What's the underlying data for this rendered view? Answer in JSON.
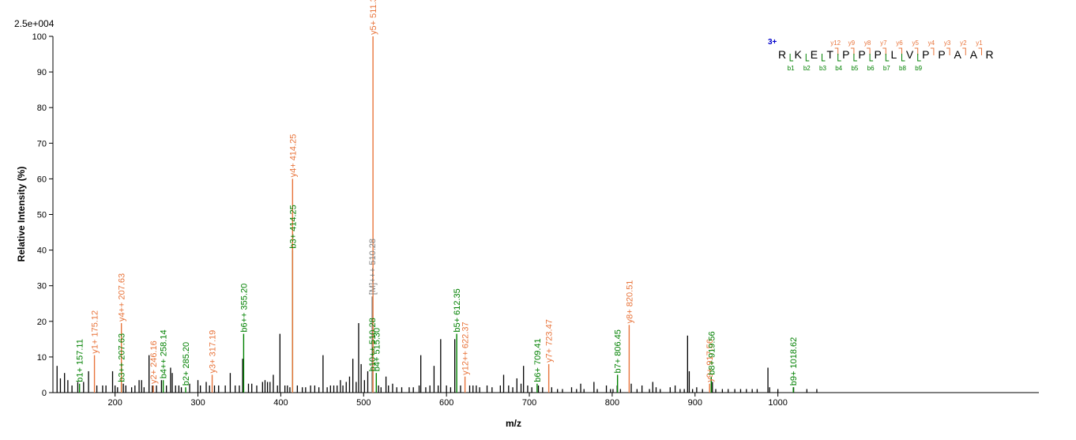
{
  "chart_data": {
    "type": "bar",
    "xlabel": "m/z",
    "ylabel": "Relative   Intensity (%)",
    "scale_label": "2.5e+004",
    "xlim": [
      125,
      1315
    ],
    "ylim": [
      0,
      100
    ],
    "x_ticks": [
      200,
      300,
      400,
      500,
      600,
      700,
      800,
      900,
      1000
    ],
    "y_ticks": [
      0,
      10,
      20,
      30,
      40,
      50,
      60,
      70,
      80,
      90,
      100
    ],
    "colors": {
      "b_ion": "#008000",
      "y_ion": "#e8743b",
      "precursor": "#808080",
      "background": "#000000"
    },
    "annotated_peaks": [
      {
        "mz": 157.11,
        "intensity": 2.5,
        "label": "b1+ 157.11",
        "ion": "b"
      },
      {
        "mz": 175.12,
        "intensity": 10.5,
        "label": "y1+ 175.12",
        "ion": "y"
      },
      {
        "mz": 207.63,
        "intensity": 2.5,
        "label": "b3++ 207.63",
        "ion": "b"
      },
      {
        "mz": 207.63,
        "intensity": 19.5,
        "label": "y4++ 207.63",
        "ion": "y"
      },
      {
        "mz": 246.16,
        "intensity": 2.0,
        "label": "y2+ 246.16",
        "ion": "y"
      },
      {
        "mz": 258.14,
        "intensity": 3.5,
        "label": "b4++ 258.14",
        "ion": "b"
      },
      {
        "mz": 285.2,
        "intensity": 1.5,
        "label": "b2+ 285.20",
        "ion": "b"
      },
      {
        "mz": 317.19,
        "intensity": 5.0,
        "label": "y3+ 317.19",
        "ion": "y"
      },
      {
        "mz": 355.2,
        "intensity": 16.5,
        "label": "b6++ 355.20",
        "ion": "b"
      },
      {
        "mz": 414.25,
        "intensity": 40.0,
        "label": "b3+ 414.25",
        "ion": "b"
      },
      {
        "mz": 414.25,
        "intensity": 60.0,
        "label": "y4+ 414.25",
        "ion": "y"
      },
      {
        "mz": 510.28,
        "intensity": 5.5,
        "label": "b10++ 510.28",
        "ion": "b"
      },
      {
        "mz": 510.28,
        "intensity": 27.0,
        "label": "[M]+++ 510.28",
        "ion": "precursor"
      },
      {
        "mz": 511.3,
        "intensity": 100.0,
        "label": "y5+ 511.30",
        "ion": "y"
      },
      {
        "mz": 515.3,
        "intensity": 5.5,
        "label": "b4+ 515.30",
        "ion": "b"
      },
      {
        "mz": 612.35,
        "intensity": 16.5,
        "label": "b5+ 612.35",
        "ion": "b"
      },
      {
        "mz": 622.37,
        "intensity": 4.5,
        "label": "y12++ 622.37",
        "ion": "y"
      },
      {
        "mz": 709.41,
        "intensity": 2.5,
        "label": "b6+ 709.41",
        "ion": "b"
      },
      {
        "mz": 723.47,
        "intensity": 8.0,
        "label": "y7+ 723.47",
        "ion": "y"
      },
      {
        "mz": 806.45,
        "intensity": 5.0,
        "label": "b7+ 806.45",
        "ion": "b"
      },
      {
        "mz": 820.51,
        "intensity": 19.0,
        "label": "y8+ 820.51",
        "ion": "y"
      },
      {
        "mz": 917.56,
        "intensity": 2.5,
        "label": "y9+ 917.56",
        "ion": "y"
      },
      {
        "mz": 919.56,
        "intensity": 4.5,
        "label": "b8+ 919.56",
        "ion": "b"
      },
      {
        "mz": 1018.62,
        "intensity": 1.5,
        "label": "b9+ 1018.62",
        "ion": "b"
      }
    ],
    "background_peaks": [
      [
        130,
        7.5
      ],
      [
        134,
        4
      ],
      [
        139,
        5.5
      ],
      [
        143,
        3.5
      ],
      [
        148,
        2
      ],
      [
        155,
        3
      ],
      [
        162,
        3
      ],
      [
        168,
        6
      ],
      [
        178,
        2
      ],
      [
        185,
        2
      ],
      [
        189,
        2
      ],
      [
        197,
        6
      ],
      [
        200,
        2
      ],
      [
        203,
        1.5
      ],
      [
        210,
        2.5
      ],
      [
        213,
        2
      ],
      [
        220,
        1.5
      ],
      [
        224,
        2
      ],
      [
        229,
        3.5
      ],
      [
        232,
        3.5
      ],
      [
        235,
        1.5
      ],
      [
        241,
        10.5
      ],
      [
        245,
        2
      ],
      [
        250,
        2
      ],
      [
        256,
        3.5
      ],
      [
        262,
        2
      ],
      [
        267,
        7
      ],
      [
        269,
        5.5
      ],
      [
        273,
        2
      ],
      [
        277,
        2
      ],
      [
        280,
        1.5
      ],
      [
        290,
        2.5
      ],
      [
        300,
        3.5
      ],
      [
        303,
        2
      ],
      [
        310,
        3
      ],
      [
        314,
        2
      ],
      [
        320,
        2
      ],
      [
        325,
        2
      ],
      [
        333,
        2
      ],
      [
        339,
        5.5
      ],
      [
        345,
        2
      ],
      [
        350,
        2
      ],
      [
        354,
        9.5
      ],
      [
        361,
        2.5
      ],
      [
        365,
        2.5
      ],
      [
        371,
        2
      ],
      [
        378,
        3
      ],
      [
        381,
        3.5
      ],
      [
        384,
        3
      ],
      [
        387,
        3
      ],
      [
        391,
        5
      ],
      [
        396,
        2
      ],
      [
        399,
        16.5
      ],
      [
        405,
        2
      ],
      [
        408,
        2
      ],
      [
        411,
        1.5
      ],
      [
        420,
        2
      ],
      [
        426,
        1.5
      ],
      [
        430,
        1.5
      ],
      [
        436,
        2
      ],
      [
        441,
        2
      ],
      [
        446,
        1.5
      ],
      [
        451,
        10.5
      ],
      [
        456,
        1.5
      ],
      [
        460,
        2
      ],
      [
        464,
        2
      ],
      [
        468,
        2
      ],
      [
        472,
        3.5
      ],
      [
        475,
        2
      ],
      [
        479,
        3
      ],
      [
        483,
        4.5
      ],
      [
        487,
        9.5
      ],
      [
        491,
        3
      ],
      [
        494,
        19.5
      ],
      [
        497,
        8
      ],
      [
        501,
        3.5
      ],
      [
        505,
        6
      ],
      [
        518,
        2
      ],
      [
        521,
        1.5
      ],
      [
        527,
        4.5
      ],
      [
        530,
        2
      ],
      [
        535,
        2.5
      ],
      [
        540,
        1.5
      ],
      [
        546,
        1.5
      ],
      [
        555,
        1.5
      ],
      [
        560,
        1.5
      ],
      [
        567,
        2
      ],
      [
        569,
        10.5
      ],
      [
        575,
        1.5
      ],
      [
        580,
        2
      ],
      [
        585,
        7.5
      ],
      [
        590,
        2
      ],
      [
        593,
        15
      ],
      [
        600,
        2
      ],
      [
        605,
        1.5
      ],
      [
        610,
        15
      ],
      [
        617,
        2
      ],
      [
        628,
        2
      ],
      [
        632,
        2
      ],
      [
        636,
        2
      ],
      [
        640,
        1.5
      ],
      [
        649,
        2
      ],
      [
        655,
        1.5
      ],
      [
        665,
        2
      ],
      [
        669,
        5
      ],
      [
        675,
        2
      ],
      [
        680,
        1.5
      ],
      [
        685,
        4
      ],
      [
        690,
        2.5
      ],
      [
        693,
        7.5
      ],
      [
        698,
        2
      ],
      [
        703,
        1.5
      ],
      [
        711,
        2
      ],
      [
        716,
        1.5
      ],
      [
        727,
        1.5
      ],
      [
        734,
        1
      ],
      [
        740,
        1
      ],
      [
        751,
        1.5
      ],
      [
        757,
        1
      ],
      [
        762,
        2.5
      ],
      [
        766,
        1
      ],
      [
        778,
        3
      ],
      [
        782,
        1
      ],
      [
        793,
        2
      ],
      [
        798,
        1
      ],
      [
        801,
        1
      ],
      [
        806,
        2
      ],
      [
        810,
        1
      ],
      [
        823,
        2.5
      ],
      [
        830,
        1
      ],
      [
        836,
        2
      ],
      [
        845,
        1
      ],
      [
        849,
        3
      ],
      [
        853,
        1.5
      ],
      [
        858,
        1
      ],
      [
        870,
        1.5
      ],
      [
        876,
        2
      ],
      [
        882,
        1
      ],
      [
        887,
        1
      ],
      [
        891,
        16
      ],
      [
        893,
        6
      ],
      [
        897,
        1
      ],
      [
        902,
        1.5
      ],
      [
        909,
        1
      ],
      [
        921,
        3
      ],
      [
        925,
        1
      ],
      [
        933,
        1
      ],
      [
        940,
        1
      ],
      [
        948,
        1
      ],
      [
        955,
        1
      ],
      [
        962,
        1
      ],
      [
        969,
        1
      ],
      [
        975,
        1
      ],
      [
        988,
        7
      ],
      [
        990,
        1.5
      ],
      [
        1000,
        1
      ],
      [
        1019,
        1.5
      ],
      [
        1035,
        1
      ],
      [
        1047,
        1
      ]
    ],
    "sequence": {
      "charge": "3+",
      "residues": [
        "R",
        "K",
        "E",
        "T",
        "P",
        "P",
        "P",
        "L",
        "V",
        "P",
        "P",
        "A",
        "A",
        "R"
      ],
      "y_labels": [
        "y12",
        "y9",
        "y8",
        "y7",
        "y6",
        "y5",
        "y4",
        "y3",
        "y2",
        "y1"
      ],
      "b_labels": [
        "b1",
        "b2",
        "b3",
        "b4",
        "b5",
        "b6",
        "b7",
        "b8",
        "b9"
      ]
    }
  }
}
